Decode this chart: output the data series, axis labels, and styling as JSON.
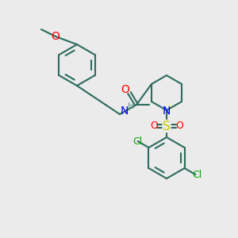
{
  "bg_color": "#ebebeb",
  "bond_color": "#2d6b5e",
  "bond_width": 1.5,
  "atom_colors": {
    "O": "#ff0000",
    "N": "#0000ff",
    "S": "#cccc00",
    "Cl": "#00aa00",
    "H_label": "#5a9090",
    "C": "#2d6b5e"
  },
  "font_size_atom": 9,
  "font_size_label": 9,
  "fig_bg": "#ebebeb"
}
